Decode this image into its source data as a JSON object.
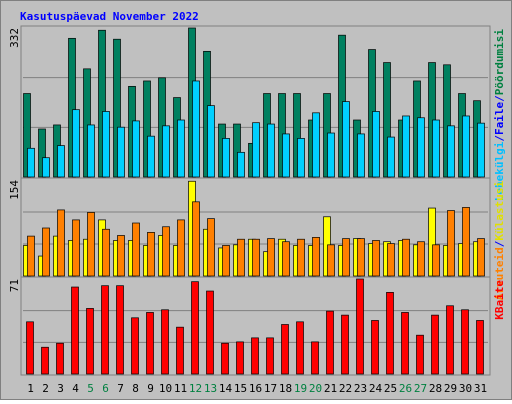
{
  "title": "Kasutuspäevad November 2022",
  "chart_data": [
    {
      "type": "bar",
      "ylim": [
        0,
        332
      ],
      "yticks": [
        332
      ],
      "legend": [
        {
          "text": "Lehekülgi",
          "color": "#00c0ff"
        },
        {
          "text": "/",
          "color": "#0000ff"
        },
        {
          "text": "Faile",
          "color": "#0000ff"
        },
        {
          "text": "/",
          "color": "#0000ff"
        },
        {
          "text": "Pöördumisi",
          "color": "#008040"
        }
      ],
      "series": [
        {
          "color": "#008060",
          "values": [
            186,
            107,
            116,
            309,
            241,
            327,
            307,
            202,
            214,
            221,
            177,
            332,
            280,
            118,
            118,
            75,
            186,
            186,
            186,
            127,
            186,
            316,
            127,
            284,
            255,
            127,
            214,
            255,
            250,
            186,
            170
          ]
        },
        {
          "color": "#00d0ff",
          "values": [
            64,
            43,
            70,
            150,
            116,
            146,
            111,
            125,
            91,
            114,
            127,
            214,
            159,
            86,
            55,
            121,
            118,
            96,
            86,
            143,
            98,
            168,
            96,
            146,
            89,
            136,
            132,
            127,
            114,
            136,
            120
          ]
        }
      ]
    },
    {
      "type": "bar",
      "ylim": [
        0,
        154
      ],
      "yticks": [
        154
      ],
      "legend": [
        {
          "text": "Arvuteid",
          "color": "#ff8000"
        },
        {
          "text": "/",
          "color": "#0000ff"
        },
        {
          "text": "Külastusi",
          "color": "#e0e000"
        }
      ],
      "series": [
        {
          "color": "#ffff00",
          "values": [
            49,
            32,
            64,
            57,
            59,
            90,
            57,
            57,
            49,
            65,
            49,
            152,
            75,
            45,
            50,
            59,
            39,
            59,
            49,
            49,
            95,
            49,
            60,
            52,
            55,
            57,
            50,
            109,
            49,
            52,
            55
          ]
        },
        {
          "color": "#ff8000",
          "values": [
            64,
            77,
            106,
            90,
            102,
            75,
            65,
            85,
            70,
            79,
            90,
            119,
            92,
            49,
            59,
            59,
            60,
            55,
            59,
            62,
            50,
            60,
            60,
            57,
            52,
            59,
            55,
            50,
            105,
            110,
            60
          ]
        }
      ]
    },
    {
      "type": "bar",
      "ylim": [
        0,
        71
      ],
      "yticks": [
        71
      ],
      "legend": [
        {
          "text": "KBaite",
          "color": "#ff0000"
        }
      ],
      "series": [
        {
          "color": "#ff0000",
          "values": [
            39,
            20,
            23,
            65,
            49,
            66,
            66,
            42,
            46,
            48,
            35,
            69,
            62,
            23,
            24,
            27,
            27,
            37,
            39,
            24,
            47,
            44,
            71,
            40,
            61,
            46,
            29,
            44,
            51,
            48,
            40
          ]
        }
      ],
      "categories": [
        "1",
        "2",
        "3",
        "4",
        "5",
        "6",
        "7",
        "8",
        "9",
        "10",
        "11",
        "12",
        "13",
        "14",
        "15",
        "16",
        "17",
        "18",
        "19",
        "20",
        "21",
        "22",
        "23",
        "24",
        "25",
        "26",
        "27",
        "28",
        "29",
        "30",
        "31"
      ],
      "category_colors": [
        "#000000",
        "#000000",
        "#000000",
        "#000000",
        "#008040",
        "#008040",
        "#000000",
        "#000000",
        "#000000",
        "#000000",
        "#000000",
        "#008040",
        "#008040",
        "#000000",
        "#000000",
        "#000000",
        "#000000",
        "#000000",
        "#008040",
        "#008040",
        "#000000",
        "#000000",
        "#000000",
        "#000000",
        "#000000",
        "#008040",
        "#008040",
        "#000000",
        "#000000",
        "#000000",
        "#000000"
      ]
    }
  ]
}
